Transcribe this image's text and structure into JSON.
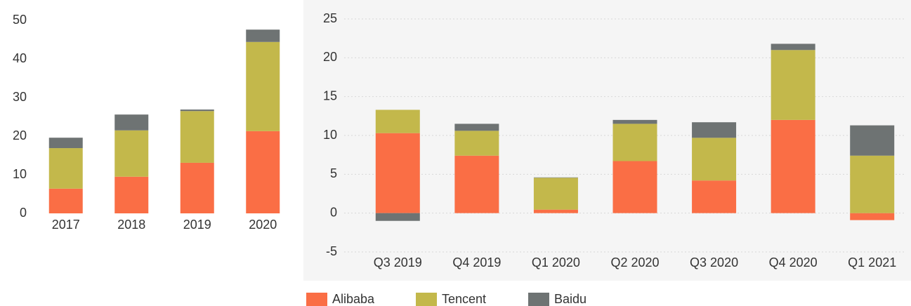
{
  "chart_data": [
    {
      "type": "stacked_bar",
      "categories": [
        "2017",
        "2018",
        "2019",
        "2020"
      ],
      "series": [
        {
          "name": "Alibaba",
          "color": "#fa6e45",
          "values": [
            6.4,
            9.5,
            13.1,
            21.3
          ]
        },
        {
          "name": "Tencent",
          "color": "#c3b84b",
          "values": [
            10.5,
            12.0,
            13.4,
            23.1
          ]
        },
        {
          "name": "Baidu",
          "color": "#6e7373",
          "values": [
            2.7,
            4.1,
            0.4,
            3.2
          ]
        }
      ],
      "ylim": [
        0,
        50
      ],
      "yticks": [
        0,
        10,
        20,
        30,
        40,
        50
      ],
      "grid": false
    },
    {
      "type": "stacked_bar",
      "categories": [
        "Q3 2019",
        "Q4 2019",
        "Q1 2020",
        "Q2 2020",
        "Q3 2020",
        "Q4 2020",
        "Q1 2021"
      ],
      "series": [
        {
          "name": "Alibaba",
          "color": "#fa6e45",
          "values": [
            10.3,
            7.4,
            0.45,
            6.7,
            4.2,
            12.0,
            -0.9
          ]
        },
        {
          "name": "Tencent",
          "color": "#c3b84b",
          "values": [
            3.0,
            3.2,
            4.1,
            4.8,
            5.5,
            9.0,
            7.4
          ]
        },
        {
          "name": "Baidu",
          "color": "#6e7373",
          "values": [
            -1.0,
            0.9,
            0.05,
            0.5,
            2.0,
            0.8,
            3.9
          ]
        }
      ],
      "ylim": [
        -5,
        25
      ],
      "yticks": [
        -5,
        0,
        5,
        10,
        15,
        20,
        25
      ],
      "grid": true,
      "legend": "bottom"
    }
  ]
}
